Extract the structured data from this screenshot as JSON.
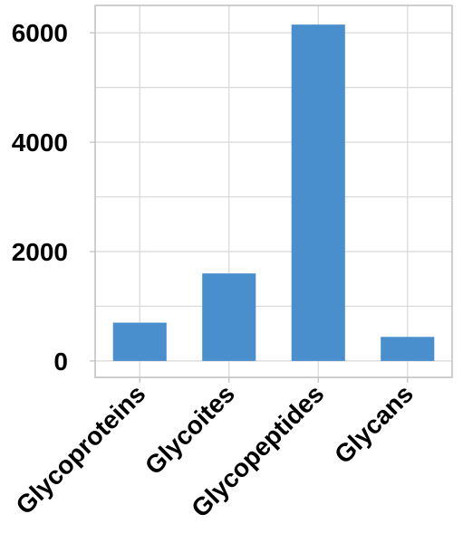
{
  "colors": {
    "bar": "#4a8fcd",
    "grid": "#d8d8d8",
    "axis": "#bfbfbf",
    "text": "#000000"
  },
  "chart_data": {
    "type": "bar",
    "title": "",
    "xlabel": "",
    "ylabel": "",
    "categories": [
      "Glycoproteins",
      "Glycoites",
      "Glycopeptides",
      "Glycans"
    ],
    "values": [
      700,
      1600,
      6150,
      440
    ],
    "ylim": [
      -300,
      6500
    ],
    "yticks": [
      0,
      2000,
      4000,
      6000
    ],
    "ytick_labels": [
      "0",
      "2000",
      "4000",
      "6000"
    ],
    "grid": true,
    "legend": "none"
  }
}
